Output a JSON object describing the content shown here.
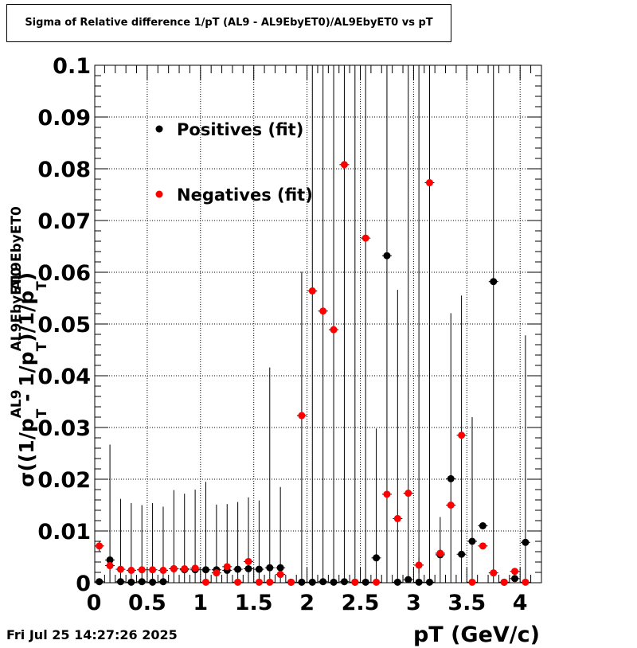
{
  "title": "Sigma of Relative difference 1/pT (AL9 - AL9EbyET0)/AL9EbyET0 vs pT",
  "timestamp": "Fri Jul 25 14:27:26 2025",
  "chart_data": {
    "type": "scatter",
    "title": "Sigma of Relative difference 1/pT (AL9 - AL9EbyET0)/AL9EbyET0 vs pT",
    "xlabel": "pT (GeV/c)",
    "ylabel": "σ((1/p_T^AL9 - 1/p_T^AL9EbyET0)/1/p_T^AL9EbyET0)",
    "ylabel_parts": {
      "prefix": "σ((1/p",
      "sup1": "AL9",
      "sub1": "T",
      "mid": " - 1/p",
      "sup2": "AL9EbyET0",
      "sub2": "T",
      "mid2": ")/1/p",
      "sup3": "AL9EbyET0",
      "sub3": "T",
      "suffix": ")"
    },
    "xlim": [
      0,
      4.1
    ],
    "ylim": [
      0,
      0.1
    ],
    "grid": true,
    "legend_position": "top-left",
    "xticks": [
      0,
      0.5,
      1,
      1.5,
      2,
      2.5,
      3,
      3.5,
      4
    ],
    "xtick_labels": [
      "0",
      "0.5",
      "1",
      "1.5",
      "2",
      "2.5",
      "3",
      "3.5",
      "4"
    ],
    "yticks": [
      0,
      0.01,
      0.02,
      0.03,
      0.04,
      0.05,
      0.06,
      0.07,
      0.08,
      0.09,
      0.1
    ],
    "ytick_labels": [
      "0",
      "0.01",
      "0.02",
      "0.03",
      "0.04",
      "0.05",
      "0.06",
      "0.07",
      "0.08",
      "0.09",
      "0.1"
    ],
    "x": [
      0.05,
      0.15,
      0.25,
      0.35,
      0.45,
      0.55,
      0.65,
      0.75,
      0.85,
      0.95,
      1.05,
      1.15,
      1.25,
      1.35,
      1.45,
      1.55,
      1.65,
      1.75,
      1.85,
      1.95,
      2.05,
      2.15,
      2.25,
      2.35,
      2.45,
      2.55,
      2.65,
      2.75,
      2.85,
      2.95,
      3.05,
      3.15,
      3.25,
      3.35,
      3.45,
      3.55,
      3.65,
      3.75,
      3.85,
      3.95,
      4.05
    ],
    "series": [
      {
        "name": "Positives (fit)",
        "color": "#000000",
        "values": [
          0.0002,
          0.0044,
          0.0002,
          0.0001,
          0.0002,
          0.0001,
          0.0002,
          0.0027,
          0.0025,
          0.0025,
          0.0025,
          0.0025,
          0.0024,
          0.0026,
          0.0027,
          0.0026,
          0.0029,
          0.0029,
          0.0001,
          0.0001,
          0.0001,
          0.0002,
          0.0001,
          0.0002,
          0.0001,
          0.0001,
          0.0048,
          0.0632,
          0.0001,
          0.0006,
          0.0001,
          0.0001,
          0.0054,
          0.0201,
          0.0055,
          0.008,
          0.011,
          0.0582,
          0.0001,
          0.0008,
          0.0078
        ],
        "errors": [
          0.0002,
          0.0223,
          0.016,
          0.0153,
          0.0148,
          0.0153,
          0.0145,
          0.0152,
          0.0147,
          0.0155,
          0.017,
          0.0126,
          0.0128,
          0.013,
          0.0138,
          0.0133,
          0.0387,
          0.0156,
          0.0001,
          0.06,
          0.1,
          0.1,
          0.1,
          0.1,
          0.1,
          0.1,
          0.025,
          0.1,
          0.0565,
          0.1,
          0.1,
          0.1,
          0.0073,
          0.032,
          0.05,
          0.024,
          0.0001,
          0.1,
          0.0001,
          0.0001,
          0.04
        ]
      },
      {
        "name": "Negatives (fit)",
        "color": "#ff0000",
        "values": [
          0.0071,
          0.0033,
          0.0026,
          0.0024,
          0.0025,
          0.0025,
          0.0024,
          0.0027,
          0.0027,
          0.0028,
          0.0001,
          0.0019,
          0.0031,
          0.0001,
          0.0041,
          0.0001,
          0.0001,
          0.0016,
          0.0001,
          0.0323,
          0.0564,
          0.0525,
          0.0489,
          0.0808,
          0.0001,
          0.0666,
          0.0001,
          0.0171,
          0.0124,
          0.0173,
          0.0034,
          0.0773,
          0.0057,
          0.015,
          0.0285,
          0.0001,
          0.0071,
          0.0019,
          0.0001,
          0.0022,
          0.0001
        ],
        "errors": [
          0.001,
          0.0003,
          0.0003,
          0.0002,
          0.0002,
          0.0002,
          0.0002,
          0.0002,
          0.0002,
          0.0002,
          0.0001,
          0.0003,
          0.0003,
          0.0001,
          0.0003,
          0.0001,
          0.0001,
          0.0005,
          0.0001,
          0.0003,
          0.0003,
          0.0003,
          0.0003,
          0.0003,
          0.0001,
          0.0003,
          0.0001,
          0.0003,
          0.0003,
          0.0003,
          0.0015,
          0.0003,
          0.0008,
          0.0003,
          0.0003,
          0.0001,
          0.0003,
          0.0003,
          0.0001,
          0.0003,
          0.0001
        ]
      }
    ]
  }
}
